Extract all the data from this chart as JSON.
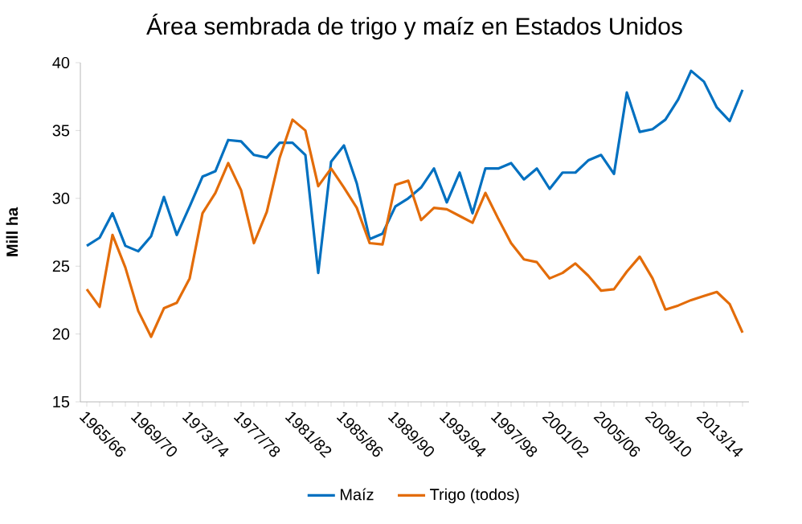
{
  "chart_data": {
    "type": "line",
    "title": "Área sembrada de trigo y maíz en Estados Unidos",
    "ylabel": "Mill ha",
    "categories": [
      "1965/66",
      null,
      null,
      null,
      "1969/70",
      null,
      null,
      null,
      "1973/74",
      null,
      null,
      null,
      "1977/78",
      null,
      null,
      null,
      "1981/82",
      null,
      null,
      null,
      "1985/86",
      null,
      null,
      null,
      "1989/90",
      null,
      null,
      null,
      "1993/94",
      null,
      null,
      null,
      "1997/98",
      null,
      null,
      null,
      "2001/02",
      null,
      null,
      null,
      "2005/06",
      null,
      null,
      null,
      "2009/10",
      null,
      null,
      null,
      "2013/14",
      null,
      null,
      null
    ],
    "series": [
      {
        "name": "Maíz",
        "color": "#0070c0",
        "values": [
          26.5,
          27.1,
          28.9,
          26.5,
          26.1,
          27.2,
          30.1,
          27.3,
          29.4,
          31.6,
          32.0,
          34.3,
          34.2,
          33.2,
          33.0,
          34.1,
          34.1,
          33.2,
          24.5,
          32.7,
          33.9,
          31.1,
          27.0,
          27.4,
          29.4,
          30.0,
          30.8,
          32.2,
          29.7,
          31.9,
          28.9,
          32.2,
          32.2,
          32.6,
          31.4,
          32.2,
          30.7,
          31.9,
          31.9,
          32.8,
          33.2,
          31.8,
          37.8,
          34.9,
          35.1,
          35.8,
          37.3,
          39.4,
          38.6,
          36.7,
          35.7,
          38.0
        ]
      },
      {
        "name": "Trigo (todos)",
        "color": "#e36c09",
        "values": [
          23.3,
          22.0,
          27.3,
          24.9,
          21.7,
          19.8,
          21.9,
          22.3,
          24.1,
          28.9,
          30.4,
          32.6,
          30.6,
          26.7,
          29.0,
          33.0,
          35.8,
          35.0,
          30.9,
          32.2,
          30.8,
          29.3,
          26.7,
          26.6,
          31.0,
          31.3,
          28.4,
          29.3,
          29.2,
          28.7,
          28.2,
          30.4,
          28.5,
          26.7,
          25.5,
          25.3,
          24.1,
          24.5,
          25.2,
          24.3,
          23.2,
          23.3,
          24.6,
          25.7,
          24.1,
          21.8,
          22.1,
          22.5,
          22.8,
          23.1,
          22.2,
          20.1
        ]
      }
    ],
    "ylim": [
      15,
      40
    ],
    "yticks": [
      15,
      20,
      25,
      30,
      35,
      40
    ],
    "grid": false,
    "legend": "bottom",
    "marker": "none",
    "line_style": "solid"
  }
}
